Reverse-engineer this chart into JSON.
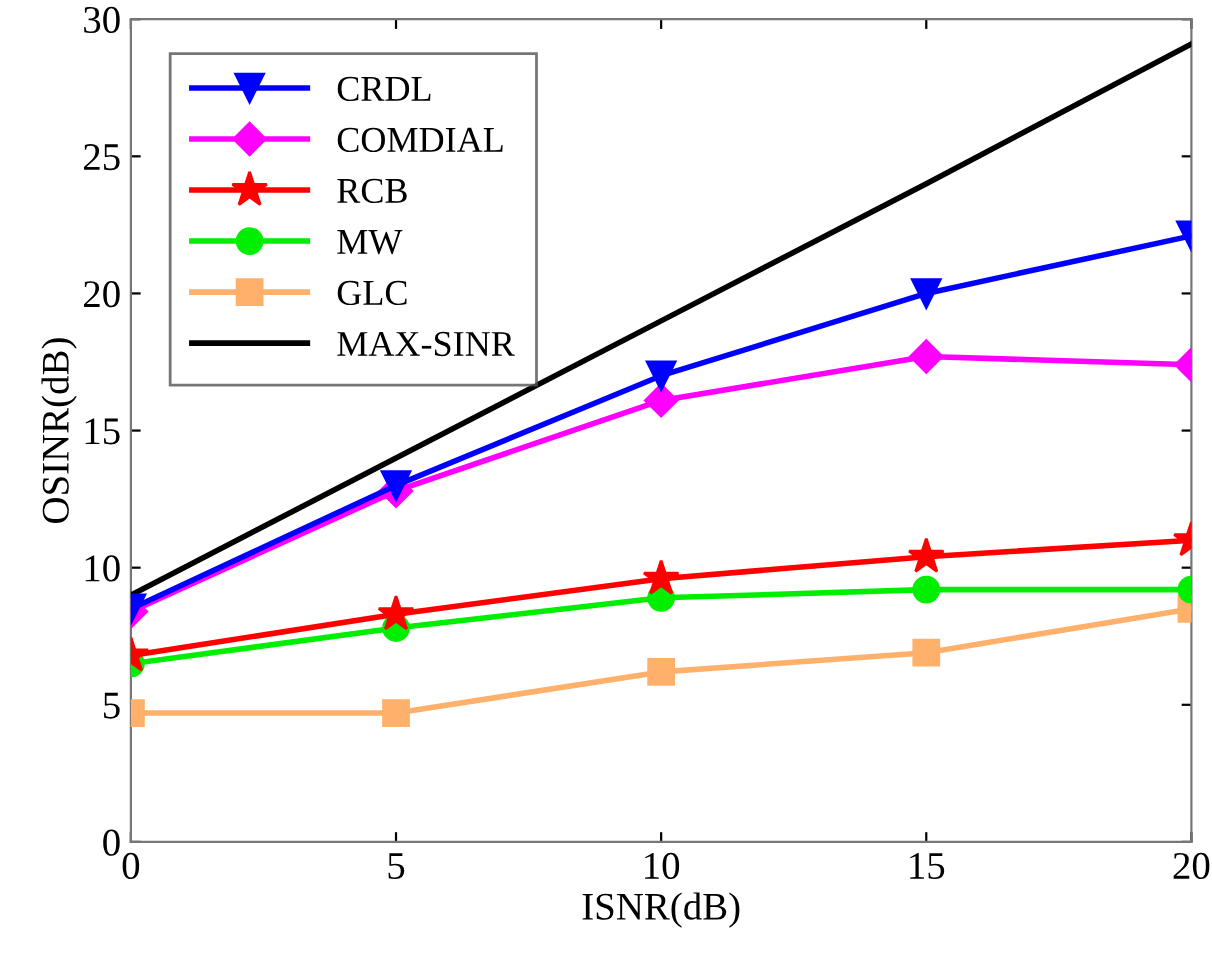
{
  "chart_data": {
    "type": "line",
    "xlabel": "ISNR(dB)",
    "ylabel": "OSINR(dB)",
    "x": [
      0,
      5,
      10,
      15,
      20
    ],
    "xlim": [
      0,
      20
    ],
    "xticks": [
      0,
      5,
      10,
      15,
      20
    ],
    "ylim": [
      0,
      30
    ],
    "yticks": [
      0,
      5,
      10,
      15,
      20,
      25,
      30
    ],
    "grid": false,
    "legend": "top left",
    "line_style": "solid",
    "series": [
      {
        "name": "CRDL",
        "color": "#0000ff",
        "marker": "triangle",
        "values": [
          8.5,
          13.0,
          17.0,
          20.0,
          22.1
        ]
      },
      {
        "name": "COMDIAL",
        "color": "#ff00ff",
        "marker": "diamond",
        "values": [
          8.4,
          12.8,
          16.1,
          17.7,
          17.4
        ]
      },
      {
        "name": "RCB",
        "color": "#ff0000",
        "marker": "star",
        "values": [
          6.8,
          8.3,
          9.6,
          10.4,
          11.0
        ]
      },
      {
        "name": "MW",
        "color": "#00ee00",
        "marker": "circle",
        "values": [
          6.5,
          7.8,
          8.9,
          9.2,
          9.2
        ]
      },
      {
        "name": "GLC",
        "color": "#ffb06a",
        "marker": "square",
        "values": [
          4.7,
          4.7,
          6.2,
          6.9,
          8.5
        ]
      },
      {
        "name": "MAX-SINR",
        "color": "#000000",
        "marker": "none",
        "values": [
          9.0,
          14.0,
          19.0,
          24.0,
          29.1
        ]
      }
    ]
  }
}
